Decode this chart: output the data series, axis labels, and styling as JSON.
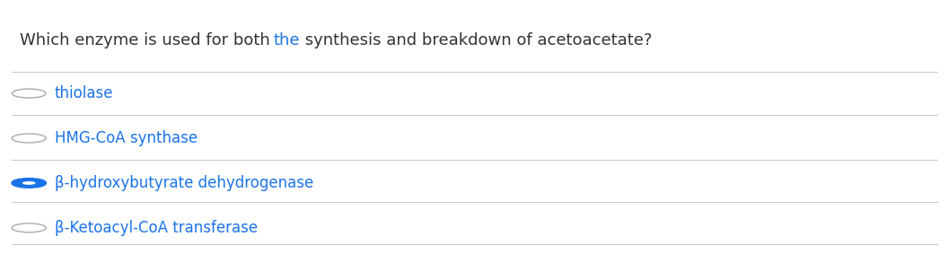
{
  "question": "Which enzyme is used for both the synthesis and breakdown of acetoacetate?",
  "question_color": "#333333",
  "question_bold_words": [
    "both",
    "the",
    "synthesis",
    "and",
    "breakdown"
  ],
  "options": [
    {
      "text": "thiolase",
      "selected": false
    },
    {
      "text": "HMG-CoA synthase",
      "selected": false
    },
    {
      "β-hydroxybutyrate dehydrogenase": "β-hydroxybutyrate dehydrogenase",
      "text": "β-hydroxybutyrate dehydrogenase",
      "selected": true
    },
    {
      "text": "β-Ketoacyl-CoA transferase",
      "selected": false
    }
  ],
  "option_text_color": "#1a73e8",
  "separator_color": "#cccccc",
  "background_color": "#ffffff",
  "circle_color_unselected": "#aaaaaa",
  "circle_color_selected_outer": "#1a73e8",
  "circle_color_selected_inner": "#1a73e8",
  "font_size_question": 13,
  "font_size_options": 12,
  "fig_width": 10.57,
  "fig_height": 2.83
}
